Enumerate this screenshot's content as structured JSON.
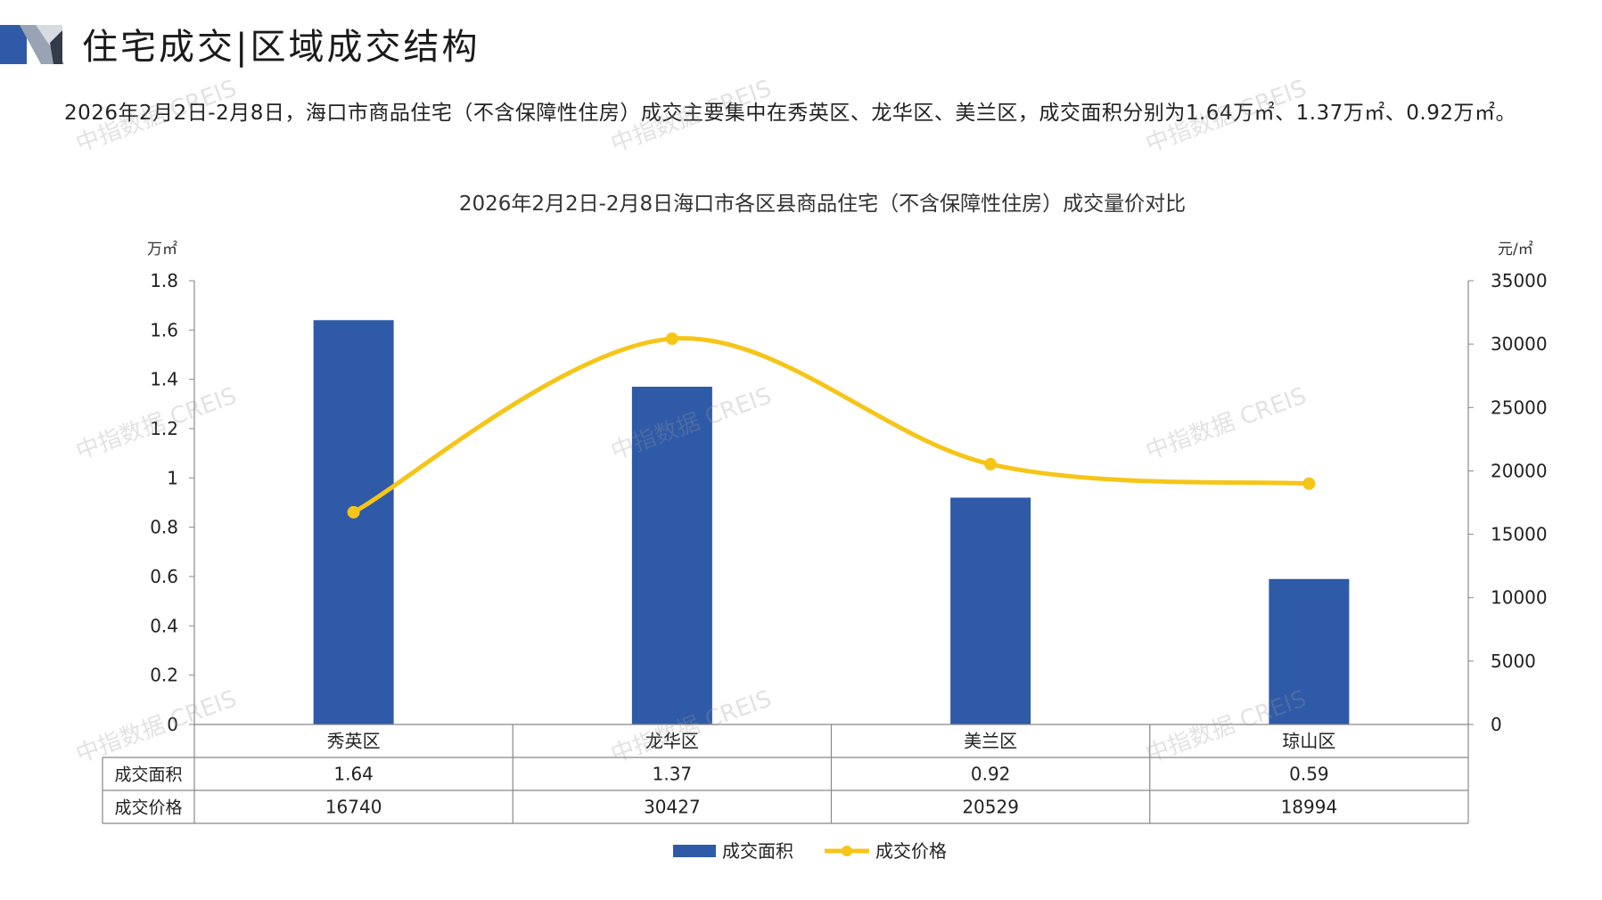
{
  "page": {
    "title": "住宅成交|区域成交结构",
    "summary": "2026年2月2日-2月8日，海口市商品住宅（不含保障性住房）成交主要集中在秀英区、龙华区、美兰区，成交面积分别为1.64万㎡、1.37万㎡、0.92万㎡。",
    "watermark": "中指数据 CREIS"
  },
  "chart_data": {
    "type": "bar",
    "title": "2026年2月2日-2月8日海口市各区县商品住宅（不含保障性住房）成交量价对比",
    "categories": [
      "秀英区",
      "龙华区",
      "美兰区",
      "琼山区"
    ],
    "series": [
      {
        "name": "成交面积",
        "type": "bar",
        "axis": "left",
        "color": "#2f5aa8",
        "values": [
          1.64,
          1.37,
          0.92,
          0.59
        ],
        "labels": [
          "1.64",
          "1.37",
          "0.92",
          "0.59"
        ]
      },
      {
        "name": "成交价格",
        "type": "line",
        "axis": "right",
        "smooth": true,
        "color": "#f5c518",
        "values": [
          16740,
          30427,
          20529,
          18994
        ],
        "labels": [
          "16740",
          "30427",
          "20529",
          "18994"
        ]
      }
    ],
    "y_left": {
      "unit": "万㎡",
      "ylim": [
        0,
        1.8
      ],
      "ticks": [
        "0",
        "0.2",
        "0.4",
        "0.6",
        "0.8",
        "1",
        "1.2",
        "1.4",
        "1.6",
        "1.8"
      ]
    },
    "y_right": {
      "unit": "元/㎡",
      "ylim": [
        0,
        35000
      ],
      "ticks": [
        "0",
        "5000",
        "10000",
        "15000",
        "20000",
        "25000",
        "30000",
        "35000"
      ]
    },
    "grid": false,
    "legend": "bottom-center",
    "data_table": true
  }
}
